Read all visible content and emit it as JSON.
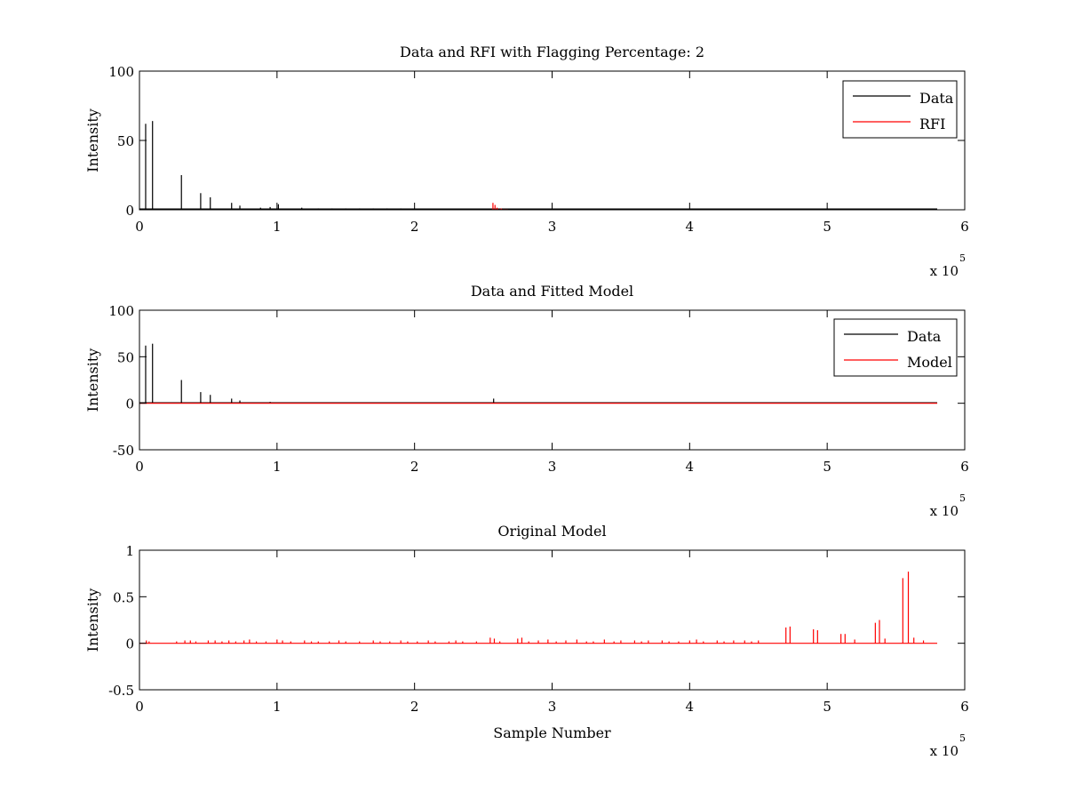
{
  "figure": {
    "background": "#ffffff"
  },
  "chart_data": [
    {
      "type": "line",
      "title": "Data and RFI with Flagging Percentage: 2",
      "xlabel": "",
      "ylabel": "Intensity",
      "xlim": [
        0,
        600000
      ],
      "ylim": [
        0,
        100
      ],
      "xticks": [
        0,
        100000,
        200000,
        300000,
        400000,
        500000,
        600000
      ],
      "xtick_labels": [
        "0",
        "1",
        "2",
        "3",
        "4",
        "5",
        "6"
      ],
      "yticks": [
        0,
        50,
        100
      ],
      "ytick_labels": [
        "0",
        "50",
        "100"
      ],
      "x_multiplier": {
        "base": "x 10",
        "exponent": "5"
      },
      "grid": false,
      "legend": {
        "placement": "top-right",
        "entries": [
          "Data",
          "RFI"
        ]
      },
      "series": [
        {
          "name": "Data",
          "color": "#000000",
          "baseline": 0.6,
          "x_end": 580000,
          "spikes": [
            [
              4500,
              62
            ],
            [
              9500,
              64
            ],
            [
              30500,
              25
            ],
            [
              44500,
              12
            ],
            [
              51500,
              9
            ],
            [
              67000,
              5
            ],
            [
              73000,
              3
            ],
            [
              88000,
              1.5
            ],
            [
              95000,
              2
            ],
            [
              101000,
              4
            ],
            [
              118000,
              1.5
            ],
            [
              130000,
              1
            ],
            [
              140000,
              1
            ],
            [
              150000,
              1
            ],
            [
              160000,
              1
            ],
            [
              170000,
              1
            ],
            [
              180000,
              1
            ],
            [
              190000,
              1
            ],
            [
              200000,
              1
            ]
          ]
        },
        {
          "name": "RFI",
          "color": "#ff0000",
          "baseline": 0,
          "x_start": 256000,
          "x_end": 268000,
          "spikes": [
            [
              257000,
              5
            ],
            [
              258500,
              3.5
            ],
            [
              260000,
              1.5
            ],
            [
              263000,
              1
            ]
          ]
        }
      ]
    },
    {
      "type": "line",
      "title": "Data and Fitted Model",
      "xlabel": "",
      "ylabel": "Intensity",
      "xlim": [
        0,
        600000
      ],
      "ylim": [
        -50,
        100
      ],
      "xticks": [
        0,
        100000,
        200000,
        300000,
        400000,
        500000,
        600000
      ],
      "xtick_labels": [
        "0",
        "1",
        "2",
        "3",
        "4",
        "5",
        "6"
      ],
      "yticks": [
        -50,
        0,
        50,
        100
      ],
      "ytick_labels": [
        "-50",
        "0",
        "50",
        "100"
      ],
      "x_multiplier": {
        "base": "x 10",
        "exponent": "5"
      },
      "grid": false,
      "legend": {
        "placement": "top-right",
        "entries": [
          "Data",
          "Model"
        ]
      },
      "series": [
        {
          "name": "Data",
          "color": "#000000",
          "baseline": 0.5,
          "x_end": 580000,
          "spikes": [
            [
              4500,
              62
            ],
            [
              9500,
              64
            ],
            [
              30500,
              25
            ],
            [
              44500,
              12
            ],
            [
              51500,
              9
            ],
            [
              67000,
              5
            ],
            [
              73000,
              3
            ],
            [
              95000,
              1.5
            ],
            [
              257500,
              5
            ]
          ]
        },
        {
          "name": "Model",
          "color": "#ff0000",
          "baseline": 0,
          "x_end": 580000,
          "spikes": []
        }
      ]
    },
    {
      "type": "line",
      "title": "Original Model",
      "xlabel": "Sample Number",
      "ylabel": "Intensity",
      "xlim": [
        0,
        600000
      ],
      "ylim": [
        -0.5,
        1
      ],
      "xticks": [
        0,
        100000,
        200000,
        300000,
        400000,
        500000,
        600000
      ],
      "xtick_labels": [
        "0",
        "1",
        "2",
        "3",
        "4",
        "5",
        "6"
      ],
      "yticks": [
        -0.5,
        0,
        0.5,
        1
      ],
      "ytick_labels": [
        "-0.5",
        "0",
        "0.5",
        "1"
      ],
      "x_multiplier": {
        "base": "x 10",
        "exponent": "5"
      },
      "grid": false,
      "series": [
        {
          "color": "#ff0000",
          "baseline": 0,
          "x_end": 580000,
          "spikes": [
            [
              5000,
              0.03
            ],
            [
              7000,
              0.02
            ],
            [
              27000,
              0.02
            ],
            [
              33000,
              0.03
            ],
            [
              37000,
              0.03
            ],
            [
              41000,
              0.02
            ],
            [
              50000,
              0.03
            ],
            [
              55000,
              0.03
            ],
            [
              60000,
              0.02
            ],
            [
              65000,
              0.03
            ],
            [
              70000,
              0.02
            ],
            [
              76000,
              0.03
            ],
            [
              80000,
              0.04
            ],
            [
              85000,
              0.02
            ],
            [
              92000,
              0.02
            ],
            [
              100000,
              0.04
            ],
            [
              104000,
              0.03
            ],
            [
              110000,
              0.02
            ],
            [
              120000,
              0.03
            ],
            [
              125000,
              0.02
            ],
            [
              130000,
              0.02
            ],
            [
              138000,
              0.02
            ],
            [
              145000,
              0.03
            ],
            [
              150000,
              0.02
            ],
            [
              160000,
              0.02
            ],
            [
              170000,
              0.03
            ],
            [
              175000,
              0.02
            ],
            [
              182000,
              0.02
            ],
            [
              190000,
              0.03
            ],
            [
              195000,
              0.02
            ],
            [
              202000,
              0.02
            ],
            [
              210000,
              0.03
            ],
            [
              215000,
              0.02
            ],
            [
              225000,
              0.02
            ],
            [
              230000,
              0.03
            ],
            [
              235000,
              0.02
            ],
            [
              245000,
              0.02
            ],
            [
              255000,
              0.06
            ],
            [
              258000,
              0.05
            ],
            [
              262000,
              0.02
            ],
            [
              275000,
              0.05
            ],
            [
              278000,
              0.06
            ],
            [
              283000,
              0.02
            ],
            [
              290000,
              0.03
            ],
            [
              297000,
              0.04
            ],
            [
              303000,
              0.02
            ],
            [
              310000,
              0.03
            ],
            [
              318000,
              0.04
            ],
            [
              325000,
              0.02
            ],
            [
              330000,
              0.02
            ],
            [
              338000,
              0.04
            ],
            [
              345000,
              0.02
            ],
            [
              350000,
              0.03
            ],
            [
              360000,
              0.03
            ],
            [
              365000,
              0.02
            ],
            [
              370000,
              0.03
            ],
            [
              380000,
              0.03
            ],
            [
              385000,
              0.02
            ],
            [
              392000,
              0.02
            ],
            [
              400000,
              0.03
            ],
            [
              405000,
              0.04
            ],
            [
              410000,
              0.02
            ],
            [
              420000,
              0.03
            ],
            [
              425000,
              0.02
            ],
            [
              432000,
              0.03
            ],
            [
              440000,
              0.03
            ],
            [
              445000,
              0.02
            ],
            [
              450000,
              0.03
            ],
            [
              470000,
              0.17
            ],
            [
              473000,
              0.18
            ],
            [
              490000,
              0.15
            ],
            [
              493000,
              0.14
            ],
            [
              510000,
              0.1
            ],
            [
              513000,
              0.1
            ],
            [
              520000,
              0.04
            ],
            [
              535000,
              0.22
            ],
            [
              538000,
              0.25
            ],
            [
              542000,
              0.05
            ],
            [
              555000,
              0.7
            ],
            [
              559000,
              0.77
            ],
            [
              563000,
              0.06
            ],
            [
              570000,
              0.03
            ]
          ]
        }
      ]
    }
  ]
}
